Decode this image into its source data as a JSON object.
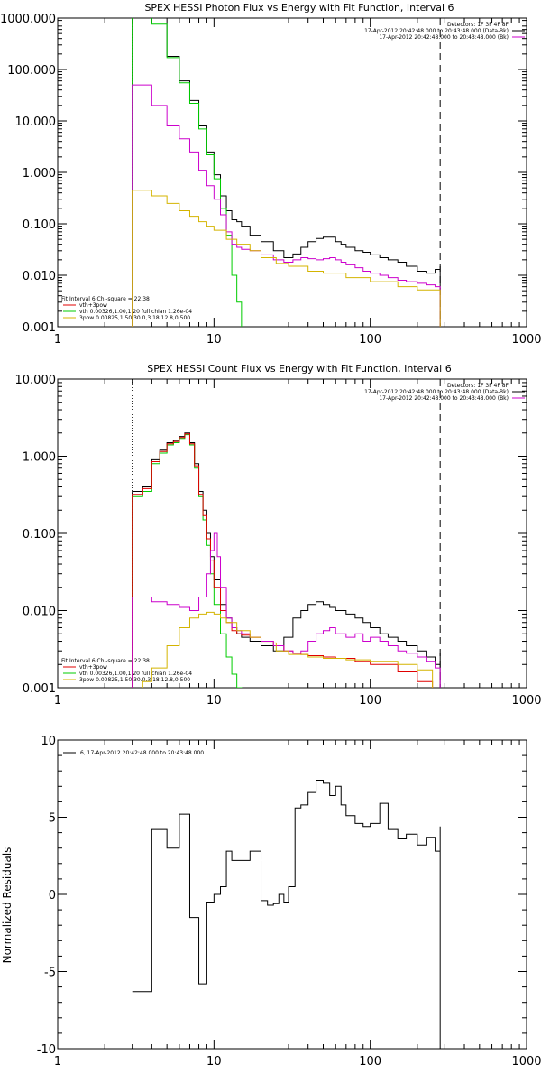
{
  "chart_data": [
    {
      "type": "line",
      "title": "SPEX HESSI Photon Flux vs Energy with Fit Function, Interval 6",
      "xscale": "log",
      "yscale": "log",
      "xlim": [
        1,
        1000
      ],
      "ylim": [
        0.001,
        1000
      ],
      "xticks": [
        1,
        10,
        100,
        1000
      ],
      "xticklabels": [
        "1",
        "10",
        "100",
        "1000"
      ],
      "yticks": [
        0.001,
        0.01,
        0.1,
        1,
        10,
        100,
        1000
      ],
      "yticklabels": [
        "0.001",
        "0.010",
        "0.100",
        "1.000",
        "10.000",
        "100.000",
        "1000.000"
      ],
      "header_lines": [
        "Detectors: 1F 3F 4F 8F",
        "17-Apr-2012 20:42:48.000 to 20:43:48.000 (Data-Bk)",
        "17-Apr-2012 20:42:48.000 to 20:43:48.000 (Bk)"
      ],
      "header_colors": [
        "#000000",
        "#000000",
        "#cc00cc"
      ],
      "fit_lines": [
        "Fit Interval 6   Chi-square = 22.38",
        "vth+3pow",
        "vth 0.00326,1.00,1.20  full chian 1.26e-04",
        "3pow 0.00825,1.50,30.0,3.18,12.8,0.500"
      ],
      "fit_colors": [
        "#000000",
        "#e00000",
        "#00cc00",
        "#d4b400"
      ],
      "vlines": [
        {
          "x": 3,
          "color": "#00cc00",
          "dash": "1,2"
        },
        {
          "x": 3,
          "color": "#ff8c00",
          "dash": "1,2"
        },
        {
          "x": 280,
          "color": "#000000",
          "dash": "8,5"
        }
      ],
      "series": [
        {
          "color": "#000000",
          "x": [
            3,
            3.5,
            4,
            5,
            6,
            7,
            8,
            9,
            10,
            11,
            12,
            13,
            14,
            15,
            17,
            20,
            24,
            28,
            32,
            36,
            40,
            45,
            50,
            55,
            60,
            65,
            70,
            80,
            90,
            100,
            115,
            130,
            150,
            170,
            200,
            230,
            260,
            280
          ],
          "y": [
            1200,
            1200,
            800,
            180,
            60,
            25,
            8,
            2.5,
            0.9,
            0.35,
            0.18,
            0.12,
            0.11,
            0.09,
            0.06,
            0.045,
            0.03,
            0.022,
            0.026,
            0.035,
            0.045,
            0.052,
            0.055,
            0.055,
            0.045,
            0.04,
            0.035,
            0.03,
            0.028,
            0.025,
            0.022,
            0.02,
            0.018,
            0.015,
            0.012,
            0.011,
            0.013,
            0.015
          ]
        },
        {
          "color": "#00cc00",
          "x": [
            3,
            3.5,
            4,
            5,
            6,
            7,
            8,
            9,
            10,
            11,
            12,
            13,
            14,
            15
          ],
          "y": [
            1200,
            1200,
            760,
            170,
            55,
            22,
            7,
            2.2,
            0.75,
            0.2,
            0.06,
            0.01,
            0.003,
            0.0008
          ]
        },
        {
          "color": "#cc00cc",
          "x": [
            3,
            3.5,
            4,
            5,
            6,
            7,
            8,
            9,
            10,
            11,
            12,
            13,
            14,
            15,
            17,
            20,
            24,
            28,
            32,
            36,
            40,
            45,
            50,
            55,
            60,
            65,
            70,
            80,
            90,
            100,
            115,
            130,
            150,
            170,
            200,
            230,
            260,
            280
          ],
          "y": [
            50,
            50,
            20,
            8,
            4.5,
            2.5,
            1.1,
            0.55,
            0.3,
            0.15,
            0.07,
            0.04,
            0.035,
            0.032,
            0.03,
            0.025,
            0.02,
            0.018,
            0.02,
            0.022,
            0.021,
            0.02,
            0.021,
            0.022,
            0.02,
            0.018,
            0.016,
            0.014,
            0.012,
            0.011,
            0.01,
            0.009,
            0.008,
            0.0075,
            0.007,
            0.0065,
            0.006,
            0.0055
          ]
        },
        {
          "color": "#d4b400",
          "x": [
            3,
            3.5,
            4,
            5,
            6,
            7,
            8,
            9,
            10,
            12,
            14,
            17,
            20,
            25,
            30,
            40,
            50,
            70,
            100,
            150,
            200,
            280
          ],
          "y": [
            0.45,
            0.45,
            0.35,
            0.25,
            0.18,
            0.14,
            0.11,
            0.09,
            0.075,
            0.05,
            0.04,
            0.03,
            0.022,
            0.017,
            0.015,
            0.012,
            0.011,
            0.009,
            0.0075,
            0.006,
            0.0052,
            0.0045
          ]
        }
      ]
    },
    {
      "type": "line",
      "title": "SPEX HESSI Count Flux vs Energy with Fit Function, Interval 6",
      "xscale": "log",
      "yscale": "log",
      "xlim": [
        1,
        1000
      ],
      "ylim": [
        0.001,
        10
      ],
      "xticks": [
        1,
        10,
        100,
        1000
      ],
      "xticklabels": [
        "1",
        "10",
        "100",
        "1000"
      ],
      "yticks": [
        0.001,
        0.01,
        0.1,
        1,
        10
      ],
      "yticklabels": [
        "0.001",
        "0.010",
        "0.100",
        "1.000",
        "10.000"
      ],
      "header_lines": [
        "Detectors: 1F 3F 4F 8F",
        "17-Apr-2012 20:42:48.000 to 20:43:48.000 (Data-Bk)",
        "17-Apr-2012 20:42:48.000 to 20:43:48.000 (Bk)"
      ],
      "header_colors": [
        "#000000",
        "#000000",
        "#cc00cc"
      ],
      "fit_lines": [
        "Fit Interval 6   Chi-square = 22.38",
        "vth+3pow",
        "vth 0.00326,1.00,1.20  full chian 1.26e-04",
        "3pow 0.00825,1.50,30.0,3.18,12.8,0.500"
      ],
      "fit_colors": [
        "#000000",
        "#e00000",
        "#00cc00",
        "#d4b400"
      ],
      "vlines": [
        {
          "x": 3,
          "color": "#000000",
          "dash": "1,2"
        },
        {
          "x": 280,
          "color": "#000000",
          "dash": "8,5"
        }
      ],
      "series": [
        {
          "color": "#000000",
          "x": [
            3,
            3.5,
            4,
            4.5,
            5,
            5.5,
            6,
            6.5,
            7,
            7.5,
            8,
            8.5,
            9,
            9.5,
            10,
            11,
            12,
            13,
            14,
            15,
            17,
            20,
            24,
            28,
            32,
            36,
            40,
            45,
            50,
            55,
            60,
            70,
            80,
            90,
            100,
            115,
            130,
            150,
            170,
            200,
            230,
            260,
            280
          ],
          "y": [
            0.35,
            0.4,
            0.9,
            1.2,
            1.5,
            1.6,
            1.8,
            2.0,
            1.5,
            0.8,
            0.35,
            0.2,
            0.1,
            0.05,
            0.025,
            0.012,
            0.008,
            0.006,
            0.005,
            0.0045,
            0.004,
            0.0035,
            0.003,
            0.0045,
            0.008,
            0.01,
            0.012,
            0.013,
            0.012,
            0.011,
            0.01,
            0.009,
            0.008,
            0.007,
            0.006,
            0.005,
            0.0045,
            0.004,
            0.0035,
            0.003,
            0.0025,
            0.002,
            0.0028
          ]
        },
        {
          "color": "#00cc00",
          "x": [
            3,
            3.5,
            4,
            4.5,
            5,
            5.5,
            6,
            6.5,
            7,
            7.5,
            8,
            8.5,
            9,
            9.5,
            10,
            11,
            12,
            13,
            14,
            15
          ],
          "y": [
            0.3,
            0.35,
            0.8,
            1.1,
            1.4,
            1.5,
            1.7,
            1.9,
            1.4,
            0.7,
            0.3,
            0.15,
            0.07,
            0.03,
            0.012,
            0.005,
            0.0025,
            0.0015,
            0.001,
            0.0006
          ]
        },
        {
          "color": "#e00000",
          "x": [
            3,
            3.5,
            4,
            4.5,
            5,
            5.5,
            6,
            6.5,
            7,
            7.5,
            8,
            8.5,
            9,
            9.5,
            10,
            11,
            12,
            13,
            14,
            15,
            17,
            20,
            24,
            28,
            32,
            36,
            40,
            50,
            60,
            80,
            100,
            150,
            200,
            250
          ],
          "y": [
            0.32,
            0.38,
            0.85,
            1.15,
            1.45,
            1.55,
            1.75,
            1.95,
            1.45,
            0.75,
            0.32,
            0.17,
            0.085,
            0.045,
            0.02,
            0.01,
            0.007,
            0.0055,
            0.005,
            0.0048,
            0.0045,
            0.004,
            0.0035,
            0.003,
            0.0028,
            0.0027,
            0.0026,
            0.0025,
            0.0024,
            0.0022,
            0.002,
            0.0016,
            0.0012,
            0.001
          ]
        },
        {
          "color": "#cc00cc",
          "x": [
            3,
            3.5,
            4,
            5,
            6,
            7,
            8,
            9,
            9.5,
            10,
            10.5,
            11,
            12,
            13,
            14,
            15,
            17,
            20,
            24,
            28,
            32,
            36,
            40,
            45,
            50,
            55,
            60,
            70,
            80,
            90,
            100,
            115,
            130,
            150,
            170,
            200,
            230,
            260,
            280
          ],
          "y": [
            0.015,
            0.015,
            0.013,
            0.012,
            0.011,
            0.01,
            0.015,
            0.03,
            0.06,
            0.1,
            0.05,
            0.02,
            0.008,
            0.006,
            0.0055,
            0.005,
            0.0045,
            0.004,
            0.0035,
            0.003,
            0.0028,
            0.003,
            0.004,
            0.005,
            0.0055,
            0.006,
            0.005,
            0.0045,
            0.005,
            0.004,
            0.0045,
            0.004,
            0.0035,
            0.003,
            0.0028,
            0.0025,
            0.0022,
            0.0018,
            0.0015
          ]
        },
        {
          "color": "#d4b400",
          "x": [
            3,
            3.5,
            4,
            5,
            6,
            7,
            8,
            9,
            10,
            11,
            12,
            14,
            17,
            20,
            25,
            30,
            40,
            50,
            70,
            100,
            150,
            200,
            250
          ],
          "y": [
            0.0008,
            0.0012,
            0.0018,
            0.0035,
            0.006,
            0.008,
            0.009,
            0.0095,
            0.009,
            0.008,
            0.007,
            0.0055,
            0.0045,
            0.0038,
            0.003,
            0.0027,
            0.0025,
            0.0024,
            0.0023,
            0.0022,
            0.002,
            0.0017,
            0.0013
          ]
        }
      ]
    },
    {
      "type": "line",
      "title": "",
      "xscale": "log",
      "yscale": "linear",
      "xlim": [
        1,
        1000
      ],
      "ylim": [
        -10,
        10
      ],
      "xticks": [
        1,
        10,
        100,
        1000
      ],
      "xticklabels": [
        "1",
        "10",
        "100",
        "1000"
      ],
      "yticks": [
        -10,
        -5,
        0,
        5,
        10
      ],
      "yticklabels": [
        "-10",
        "-5",
        "0",
        "5",
        "10"
      ],
      "ylabel": "Normalized Residuals",
      "legend": "6, 17-Apr-2012 20:42:48.000 to 20:43:48.000",
      "series": [
        {
          "color": "#000000",
          "x": [
            3,
            3.5,
            4,
            4.5,
            5,
            5.5,
            6,
            6.5,
            7,
            7.5,
            8,
            8.5,
            9,
            9.5,
            10,
            11,
            12,
            13,
            14,
            15,
            17,
            20,
            22,
            24,
            26,
            28,
            30,
            33,
            36,
            40,
            45,
            50,
            55,
            60,
            65,
            70,
            80,
            90,
            100,
            115,
            130,
            150,
            170,
            200,
            230,
            260,
            280
          ],
          "y": [
            -6.3,
            -6.3,
            4.2,
            4.2,
            3.0,
            3.0,
            5.2,
            5.2,
            -1.5,
            -1.5,
            -5.8,
            -5.8,
            -0.5,
            -0.5,
            0,
            0.5,
            2.8,
            2.2,
            2.2,
            2.2,
            2.8,
            -0.4,
            -0.7,
            -0.6,
            0,
            -0.5,
            0.5,
            5.6,
            5.8,
            6.6,
            7.4,
            7.2,
            6.4,
            7.0,
            5.8,
            5.1,
            4.6,
            4.4,
            4.6,
            5.9,
            4.2,
            3.6,
            3.9,
            3.2,
            3.7,
            2.8,
            4.4
          ]
        }
      ]
    }
  ]
}
